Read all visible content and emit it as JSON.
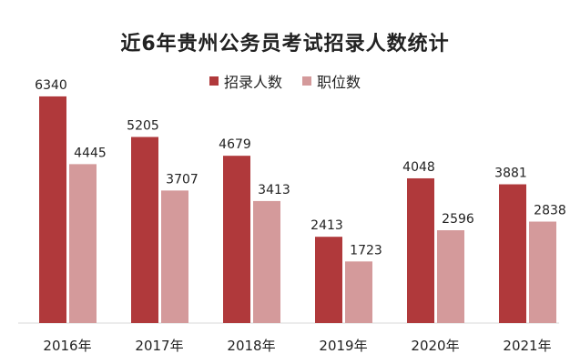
{
  "chart_data": {
    "type": "bar",
    "title": "近6年贵州公务员考试招录人数统计",
    "categories": [
      "2016年",
      "2017年",
      "2018年",
      "2019年",
      "2020年",
      "2021年"
    ],
    "series": [
      {
        "name": "招录人数",
        "values": [
          6340,
          5205,
          4679,
          2413,
          4048,
          3881
        ],
        "color": "#b0393b"
      },
      {
        "name": "职位数",
        "values": [
          4445,
          3707,
          3413,
          1723,
          2596,
          2838
        ],
        "color": "#d49a9b"
      }
    ],
    "ylim": [
      0,
      7000
    ],
    "grid": false,
    "legend_position": "top"
  }
}
